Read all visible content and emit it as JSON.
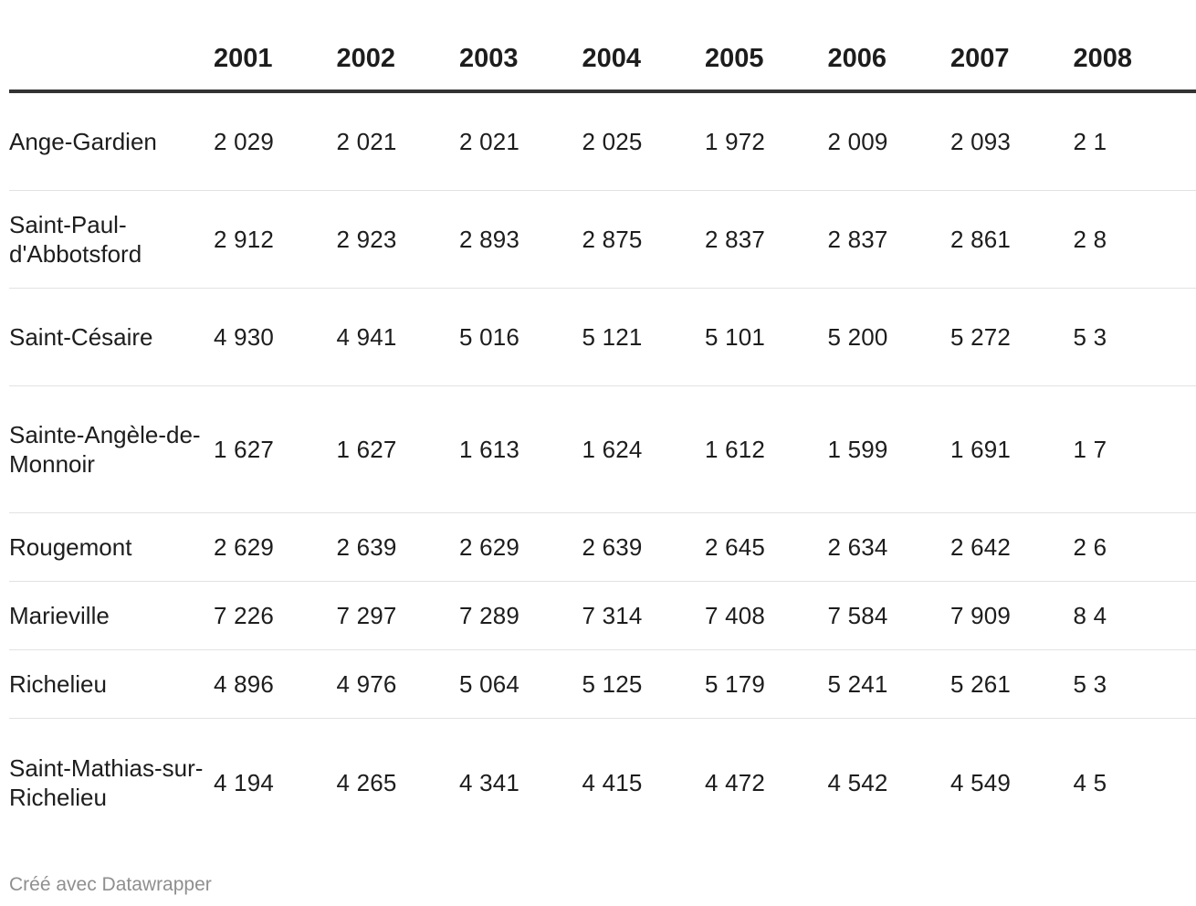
{
  "chart_data": {
    "type": "table",
    "columns": [
      "",
      "2001",
      "2002",
      "2003",
      "2004",
      "2005",
      "2006",
      "2007",
      "2008"
    ],
    "rows": [
      {
        "name": "Ange-Gardien",
        "values": [
          "2 029",
          "2 021",
          "2 021",
          "2 025",
          "1 972",
          "2 009",
          "2 093",
          "2 1"
        ]
      },
      {
        "name": "Saint-Paul-d'Abbotsford",
        "values": [
          "2 912",
          "2 923",
          "2 893",
          "2 875",
          "2 837",
          "2 837",
          "2 861",
          "2 8"
        ]
      },
      {
        "name": "Saint-Césaire",
        "values": [
          "4 930",
          "4 941",
          "5 016",
          "5 121",
          "5 101",
          "5 200",
          "5 272",
          "5 3"
        ]
      },
      {
        "name": "Sainte-Angèle-de-Monnoir",
        "values": [
          "1 627",
          "1 627",
          "1 613",
          "1 624",
          "1 612",
          "1 599",
          "1 691",
          "1 7"
        ]
      },
      {
        "name": "Rougemont",
        "values": [
          "2 629",
          "2 639",
          "2 629",
          "2 639",
          "2 645",
          "2 634",
          "2 642",
          "2 6"
        ]
      },
      {
        "name": "Marieville",
        "values": [
          "7 226",
          "7 297",
          "7 289",
          "7 314",
          "7 408",
          "7 584",
          "7 909",
          "8 4"
        ]
      },
      {
        "name": "Richelieu",
        "values": [
          "4 896",
          "4 976",
          "5 064",
          "5 125",
          "5 179",
          "5 241",
          "5 261",
          "5 3"
        ]
      },
      {
        "name": "Saint-Mathias-sur-Richelieu",
        "values": [
          "4 194",
          "4 265",
          "4 341",
          "4 415",
          "4 472",
          "4 542",
          "4 549",
          "4 5"
        ]
      }
    ]
  },
  "footer": {
    "credit": "Créé avec Datawrapper"
  }
}
